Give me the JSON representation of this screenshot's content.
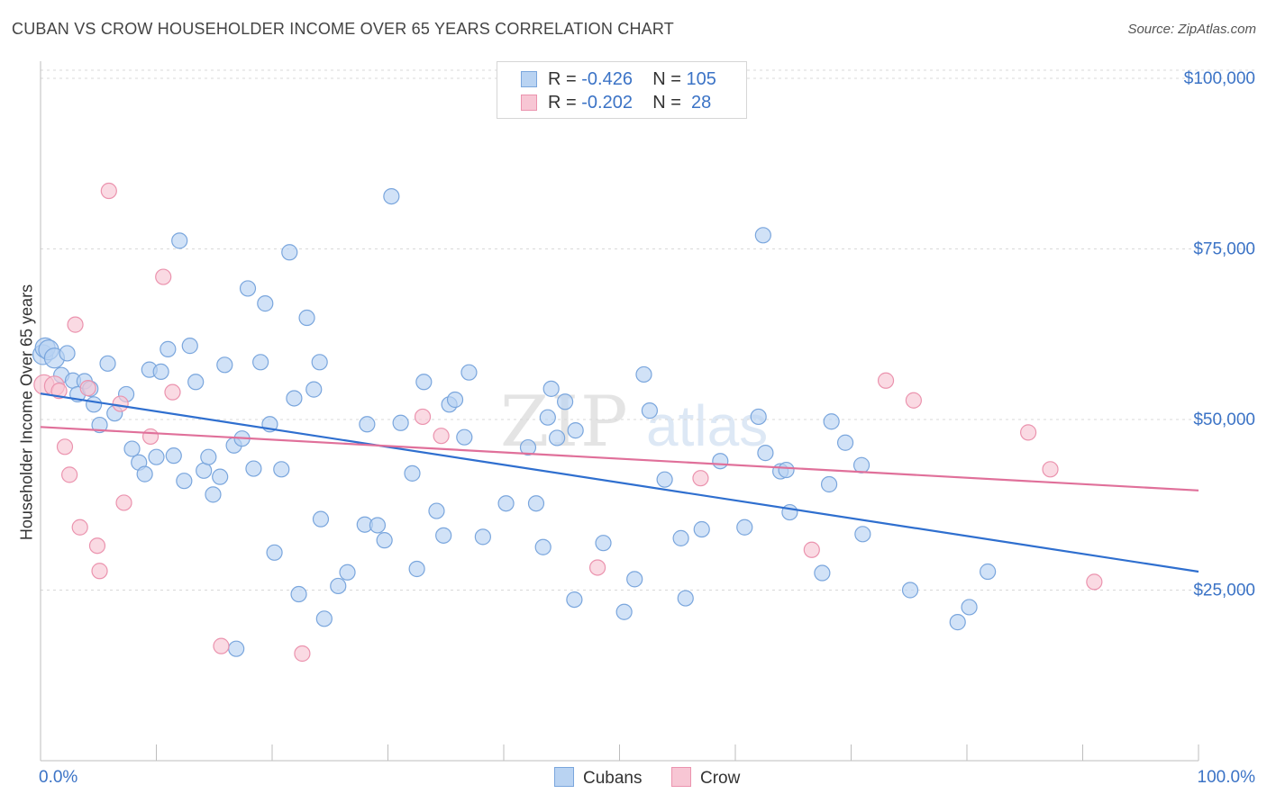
{
  "title": "CUBAN VS CROW HOUSEHOLDER INCOME OVER 65 YEARS CORRELATION CHART",
  "source": "Source: ZipAtlas.com",
  "legend": {
    "rows": [
      {
        "r_label": "R = ",
        "r_value": "-0.426",
        "n_label": "N = ",
        "n_value": "105"
      },
      {
        "r_label": "R = ",
        "r_value": "-0.202",
        "n_label": "N = ",
        "n_value": " 28"
      }
    ]
  },
  "bottom_legend": [
    {
      "label": "Cubans"
    },
    {
      "label": "Crow"
    }
  ],
  "colors": {
    "cubans_fill": "#b9d3f2",
    "cubans_stroke": "#7aa6dd",
    "cubans_line": "#2f6fcf",
    "crow_fill": "#f7c6d4",
    "crow_stroke": "#eb93ae",
    "crow_line": "#e0709a",
    "axis_text": "#3b73c6",
    "grid": "#d9d9d9"
  },
  "chart_data": {
    "type": "scatter",
    "title": "CUBAN VS CROW HOUSEHOLDER INCOME OVER 65 YEARS CORRELATION CHART",
    "xlabel": "",
    "ylabel": "Householder Income Over 65 years",
    "xlim": [
      0,
      100
    ],
    "ylim": [
      0,
      102500
    ],
    "x_tick_labels": [
      "0.0%",
      "100.0%"
    ],
    "y_ticks": [
      25000,
      50000,
      75000,
      100000
    ],
    "y_tick_labels": [
      "$25,000",
      "$50,000",
      "$75,000",
      "$100,000"
    ],
    "watermark": {
      "left": "ZIP",
      "right": "atlas"
    },
    "series": [
      {
        "name": "Cubans",
        "trend": {
          "x": [
            0,
            100
          ],
          "y": [
            53800,
            27700
          ]
        },
        "points": [
          [
            0.2,
            59500
          ],
          [
            0.4,
            60500
          ],
          [
            0.7,
            60200
          ],
          [
            1.2,
            59000
          ],
          [
            1.8,
            56500
          ],
          [
            2.3,
            59700
          ],
          [
            2.8,
            55700
          ],
          [
            3.2,
            53700
          ],
          [
            3.8,
            55600
          ],
          [
            4.3,
            54500
          ],
          [
            4.6,
            52200
          ],
          [
            5.1,
            49200
          ],
          [
            5.8,
            58200
          ],
          [
            6.4,
            50900
          ],
          [
            7.4,
            53700
          ],
          [
            7.9,
            45700
          ],
          [
            8.5,
            43700
          ],
          [
            9.0,
            42000
          ],
          [
            9.4,
            57300
          ],
          [
            10.0,
            44500
          ],
          [
            10.4,
            57000
          ],
          [
            11.0,
            60300
          ],
          [
            11.5,
            44700
          ],
          [
            12.0,
            76200
          ],
          [
            12.4,
            41000
          ],
          [
            12.9,
            60800
          ],
          [
            13.4,
            55500
          ],
          [
            14.1,
            42500
          ],
          [
            14.5,
            44500
          ],
          [
            14.9,
            39000
          ],
          [
            15.5,
            41600
          ],
          [
            15.9,
            58000
          ],
          [
            16.7,
            46200
          ],
          [
            16.9,
            16400
          ],
          [
            17.4,
            47200
          ],
          [
            17.9,
            69200
          ],
          [
            18.4,
            42800
          ],
          [
            19.0,
            58400
          ],
          [
            19.4,
            67000
          ],
          [
            19.8,
            49300
          ],
          [
            20.2,
            30500
          ],
          [
            20.8,
            42700
          ],
          [
            21.5,
            74500
          ],
          [
            21.9,
            53100
          ],
          [
            22.3,
            24400
          ],
          [
            23.0,
            64900
          ],
          [
            23.6,
            54400
          ],
          [
            24.1,
            58400
          ],
          [
            24.2,
            35400
          ],
          [
            24.5,
            20800
          ],
          [
            25.7,
            25600
          ],
          [
            26.5,
            27600
          ],
          [
            28.0,
            34600
          ],
          [
            28.2,
            49300
          ],
          [
            29.1,
            34500
          ],
          [
            29.7,
            32300
          ],
          [
            30.3,
            82700
          ],
          [
            31.1,
            49500
          ],
          [
            32.1,
            42100
          ],
          [
            32.5,
            28100
          ],
          [
            33.1,
            55500
          ],
          [
            34.2,
            36600
          ],
          [
            34.8,
            33000
          ],
          [
            35.3,
            52200
          ],
          [
            35.8,
            52900
          ],
          [
            36.6,
            47400
          ],
          [
            37.0,
            56900
          ],
          [
            38.2,
            32800
          ],
          [
            40.2,
            37700
          ],
          [
            42.1,
            45900
          ],
          [
            42.8,
            37700
          ],
          [
            43.4,
            31300
          ],
          [
            43.8,
            50300
          ],
          [
            44.1,
            54500
          ],
          [
            44.6,
            47300
          ],
          [
            45.3,
            52600
          ],
          [
            46.1,
            23600
          ],
          [
            46.2,
            48400
          ],
          [
            48.6,
            31900
          ],
          [
            50.4,
            21800
          ],
          [
            51.3,
            26600
          ],
          [
            52.1,
            56600
          ],
          [
            52.6,
            51300
          ],
          [
            53.9,
            41200
          ],
          [
            55.3,
            32600
          ],
          [
            55.7,
            23800
          ],
          [
            57.1,
            33900
          ],
          [
            58.7,
            43900
          ],
          [
            60.8,
            34200
          ],
          [
            62.0,
            50400
          ],
          [
            62.6,
            45100
          ],
          [
            63.9,
            42400
          ],
          [
            64.4,
            42600
          ],
          [
            64.7,
            36400
          ],
          [
            67.5,
            27500
          ],
          [
            68.1,
            40500
          ],
          [
            68.3,
            49700
          ],
          [
            69.5,
            46600
          ],
          [
            70.9,
            43300
          ],
          [
            71.0,
            33200
          ],
          [
            75.1,
            25000
          ],
          [
            79.2,
            20300
          ],
          [
            80.2,
            22500
          ],
          [
            81.8,
            27700
          ],
          [
            62.4,
            77000
          ]
        ]
      },
      {
        "name": "Crow",
        "trend": {
          "x": [
            0,
            100
          ],
          "y": [
            48900,
            39600
          ]
        },
        "points": [
          [
            0.3,
            55100
          ],
          [
            1.2,
            54900
          ],
          [
            1.6,
            54200
          ],
          [
            2.1,
            46000
          ],
          [
            2.5,
            41900
          ],
          [
            3.0,
            63900
          ],
          [
            3.4,
            34200
          ],
          [
            4.1,
            54600
          ],
          [
            4.9,
            31500
          ],
          [
            5.1,
            27800
          ],
          [
            5.9,
            83500
          ],
          [
            6.9,
            52300
          ],
          [
            7.2,
            37800
          ],
          [
            9.5,
            47500
          ],
          [
            10.6,
            70900
          ],
          [
            11.4,
            54000
          ],
          [
            15.6,
            16800
          ],
          [
            22.6,
            15700
          ],
          [
            33.0,
            50400
          ],
          [
            34.6,
            47600
          ],
          [
            48.1,
            28300
          ],
          [
            57.0,
            41400
          ],
          [
            66.6,
            30900
          ],
          [
            73.0,
            55700
          ],
          [
            75.4,
            52800
          ],
          [
            85.3,
            48100
          ],
          [
            87.2,
            42700
          ],
          [
            91.0,
            26200
          ]
        ]
      }
    ]
  }
}
